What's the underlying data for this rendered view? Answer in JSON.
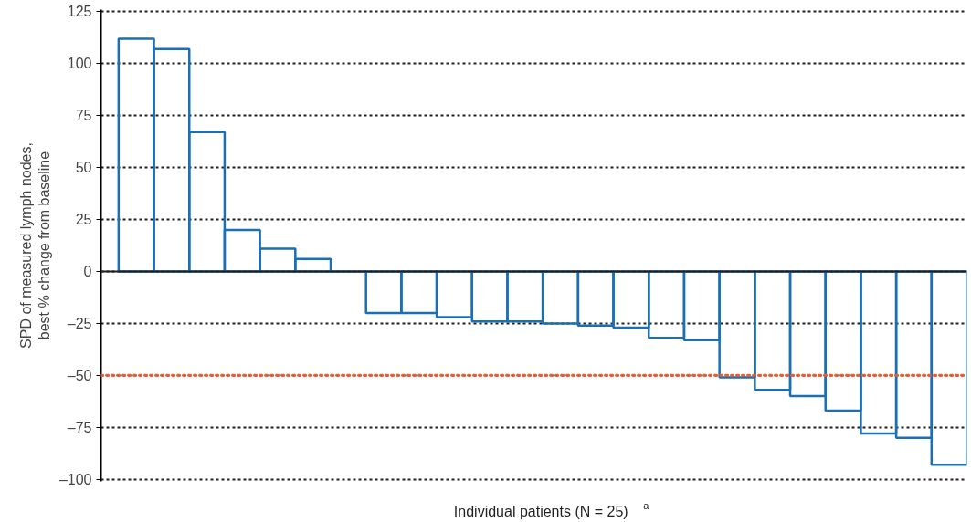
{
  "chart_data": {
    "type": "bar",
    "ylabel": "SPD of measured lymph nodes,\nbest % change from baseline",
    "xlabel": "Individual patients (N = 25)$^{a}$",
    "categories": [
      null,
      null,
      null,
      null,
      null,
      null,
      null,
      null,
      null,
      null,
      null,
      null,
      null,
      null,
      null,
      null,
      null,
      null,
      null,
      null,
      null,
      null,
      null,
      null
    ],
    "series": [
      {
        "color": "#1a6fb5",
        "values": [
          112,
          107,
          67,
          20,
          11,
          6,
          0,
          -20,
          -20,
          -22,
          -24,
          -24,
          -25,
          -26,
          -27,
          -32,
          -33,
          -51,
          -57,
          -60,
          -67,
          -78,
          -80,
          -93
        ]
      }
    ],
    "ylim": [
      -101,
      126
    ],
    "yticks": [
      {
        "value": -100,
        "label": "–100"
      },
      {
        "value": -75,
        "label": "–75"
      },
      {
        "value": -50,
        "label": "–50"
      },
      {
        "value": -25,
        "label": "–25"
      },
      0,
      25,
      50,
      75,
      100,
      125
    ],
    "grid": "y",
    "ref_lines": [
      {
        "axis": "y",
        "value": 0,
        "color": "#231f20",
        "line_style": "solid"
      },
      {
        "axis": "y",
        "value": -50,
        "color": "#f05a28",
        "line_style": "dotted"
      }
    ]
  }
}
